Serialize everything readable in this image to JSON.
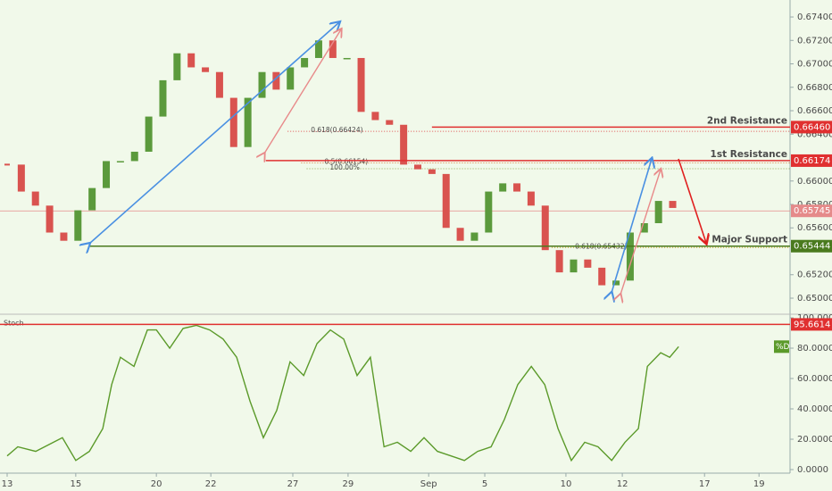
{
  "chart_data": [
    {
      "type": "candlestick",
      "x": [
        0,
        0.52,
        1.04,
        1.56,
        2.08,
        2.6,
        3.12,
        3.64,
        4.16,
        4.68,
        5.2,
        5.72,
        6.24,
        6.76,
        7.28,
        7.8,
        8.32,
        8.84,
        9.36,
        9.88,
        10.4,
        10.92,
        11.44,
        11.96,
        12.48,
        13,
        13.52,
        14.04,
        14.56,
        15.08,
        15.6,
        16.12,
        16.64,
        17.16,
        17.68,
        18.2,
        18.72,
        19.24,
        19.76,
        20.28,
        20.8,
        21.32,
        21.84,
        22.36,
        22.88,
        23.4,
        23.92,
        24.44
      ],
      "values": [
        0.6614,
        0.6591,
        0.6579,
        0.6556,
        0.6549,
        0.6575,
        0.6594,
        0.6617,
        0.6617,
        0.6625,
        0.6655,
        0.6686,
        0.6709,
        0.6697,
        0.6693,
        0.6671,
        0.6629,
        0.6671,
        0.6693,
        0.6678,
        0.6697,
        0.6705,
        0.672,
        0.6705,
        0.6705,
        0.6659,
        0.6652,
        0.6648,
        0.6614,
        0.661,
        0.6606,
        0.656,
        0.6549,
        0.6556,
        0.6591,
        0.6598,
        0.6591,
        0.6579,
        0.6541,
        0.6522,
        0.6533,
        0.6526,
        0.6511,
        0.6515,
        0.6556,
        0.6564,
        0.6583,
        0.6577
      ],
      "up_color": "#5b9a3c",
      "down_color": "#d9534f",
      "xlim": [
        -0.262,
        28.75
      ],
      "xticks": [
        {
          "value": 0,
          "label": "13"
        },
        {
          "value": 2.52,
          "label": "15"
        },
        {
          "value": 5.48,
          "label": "20"
        },
        {
          "value": 7.48,
          "label": "22"
        },
        {
          "value": 10.49,
          "label": "27"
        },
        {
          "value": 12.52,
          "label": "29"
        },
        {
          "value": 15.48,
          "label": "Sep"
        },
        {
          "value": 17.54,
          "label": "5"
        },
        {
          "value": 20.52,
          "label": "10"
        },
        {
          "value": 22.59,
          "label": "12"
        },
        {
          "value": 25.61,
          "label": "17"
        },
        {
          "value": 27.61,
          "label": "19"
        }
      ],
      "ylim": [
        0.64878,
        0.67545
      ],
      "yticks": [
        {
          "value": 0.674,
          "label": "0.67400"
        },
        {
          "value": 0.672,
          "label": "0.67200"
        },
        {
          "value": 0.67,
          "label": "0.67000"
        },
        {
          "value": 0.668,
          "label": "0.66800"
        },
        {
          "value": 0.666,
          "label": "0.66600"
        },
        {
          "value": 0.664,
          "label": "0.66400"
        },
        {
          "value": 0.66,
          "label": "0.66000"
        },
        {
          "value": 0.658,
          "label": "0.65800"
        },
        {
          "value": 0.656,
          "label": "0.65600"
        },
        {
          "value": 0.652,
          "label": "0.65200"
        },
        {
          "value": 0.65,
          "label": "0.65000"
        }
      ],
      "levels": [
        {
          "label": "2nd Resistance",
          "value": 0.6646,
          "value_label": "0.66460",
          "color": "#e03030",
          "x": 15.6
        },
        {
          "label": "1st Resistance",
          "value": 0.66174,
          "value_label": "0.66174",
          "color": "#e03030",
          "x": 9.5
        },
        {
          "label": "Major Support",
          "value": 0.65444,
          "value_label": "0.65444",
          "color": "#4a7a1e",
          "x": 3.0
        }
      ],
      "last_price": {
        "value": 0.65745,
        "value_label": "0.65745",
        "color": "#e58a8a"
      },
      "fib": [
        {
          "label": "0.618(0.66424)",
          "value": 0.66424,
          "color": "#e05050",
          "x": 10.3
        },
        {
          "label": "0.5(0.66154)",
          "value": 0.66154,
          "color": "#e07030",
          "x": 10.8
        },
        {
          "label": "100.00%",
          "value": 0.66105,
          "color": "#8aa850",
          "x": 11.0
        },
        {
          "label": "0.618(0.65432)",
          "value": 0.65432,
          "color": "#c8a020",
          "x": 20.0
        }
      ]
    },
    {
      "type": "line",
      "title": "Stoch",
      "x": [
        0,
        0.39,
        1.05,
        1.7,
        2.03,
        2.52,
        3.02,
        3.51,
        3.84,
        4.16,
        4.66,
        5.15,
        5.48,
        5.97,
        6.46,
        6.95,
        7.44,
        7.93,
        8.43,
        8.92,
        9.41,
        9.9,
        10.39,
        10.89,
        11.38,
        11.87,
        12.36,
        12.85,
        13.34,
        13.84,
        14.33,
        14.82,
        15.31,
        15.8,
        16.3,
        16.79,
        17.28,
        17.77,
        18.26,
        18.75,
        19.25,
        19.74,
        20.23,
        20.72,
        21.21,
        21.7,
        22.2,
        22.69,
        23.18,
        23.51,
        24.0,
        24.33,
        24.66
      ],
      "series": [
        {
          "name": "%D",
          "color": "#5b9a2a",
          "values": [
            9,
            15,
            12,
            18,
            21,
            6,
            12,
            27,
            56,
            74,
            68,
            92,
            92,
            80,
            93,
            95,
            92,
            86,
            74,
            45,
            21,
            39,
            71,
            62,
            83,
            92,
            86,
            62,
            74,
            15,
            18,
            12,
            21,
            12,
            9,
            6,
            12,
            15,
            33,
            56,
            68,
            56,
            27,
            6,
            18,
            15,
            6,
            18,
            27,
            68,
            77,
            74,
            81
          ]
        }
      ],
      "ylim": [
        -5.3,
        100.6
      ],
      "yticks": [
        {
          "value": 100,
          "label": "100.0000"
        },
        {
          "value": 80,
          "label": "80.0000"
        },
        {
          "value": 60,
          "label": "60.0000"
        },
        {
          "value": 40,
          "label": "40.0000"
        },
        {
          "value": 20,
          "label": "20.0000"
        },
        {
          "value": 0,
          "label": "0.0000"
        }
      ],
      "level": {
        "value": 95.6614,
        "value_label": "95.6614",
        "color": "#e03030"
      }
    }
  ]
}
